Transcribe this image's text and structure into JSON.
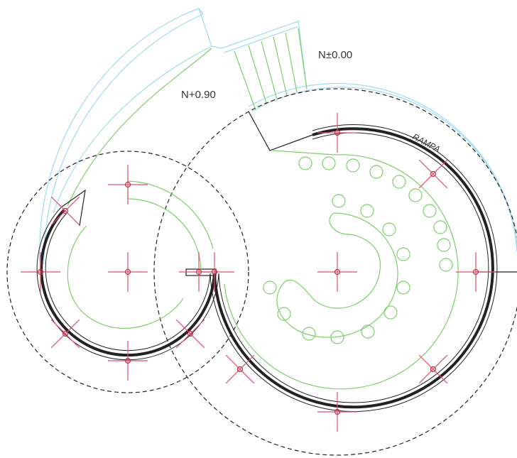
{
  "labels": {
    "level_low": "N±0.00",
    "level_high": "N+0.90",
    "ramp": "RAMPA"
  }
}
